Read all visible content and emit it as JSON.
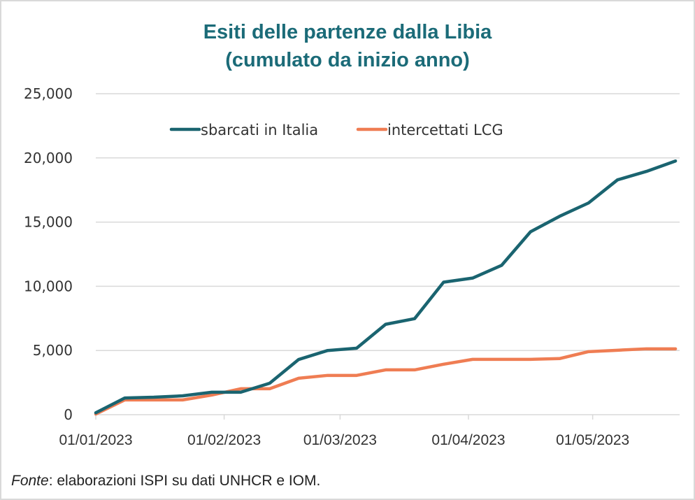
{
  "chart_data": {
    "type": "line",
    "title": "Esiti delle partenze dalla Libia",
    "subtitle": "(cumulato da inizio anno)",
    "xlabel": "",
    "ylabel": "",
    "ylim": [
      0,
      25000
    ],
    "yticks": [
      0,
      5000,
      10000,
      15000,
      20000,
      25000
    ],
    "ytick_labels": [
      "0",
      "5,000",
      "10,000",
      "15,000",
      "20,000",
      "25,000"
    ],
    "xlim_days": [
      0,
      141
    ],
    "xtick_days": [
      0,
      31,
      59,
      90,
      120
    ],
    "xtick_labels": [
      "01/01/2023",
      "01/02/2023",
      "01/03/2023",
      "01/04/2023",
      "01/05/2023"
    ],
    "grid": true,
    "legend_position": "top-center",
    "x": [
      "01/01/2023",
      "08/01/2023",
      "15/01/2023",
      "22/01/2023",
      "29/01/2023",
      "05/02/2023",
      "12/02/2023",
      "19/02/2023",
      "26/02/2023",
      "05/03/2023",
      "12/03/2023",
      "19/03/2023",
      "26/03/2023",
      "02/04/2023",
      "09/04/2023",
      "16/04/2023",
      "23/04/2023",
      "30/04/2023",
      "07/05/2023",
      "14/05/2023",
      "21/05/2023"
    ],
    "x_days": [
      0,
      7,
      14,
      21,
      28,
      35,
      42,
      49,
      56,
      63,
      70,
      77,
      84,
      91,
      98,
      105,
      112,
      119,
      126,
      133,
      140
    ],
    "series": [
      {
        "name": "sbarcati in Italia",
        "color": "#1a6470",
        "values": [
          150,
          1300,
          1360,
          1470,
          1750,
          1750,
          2450,
          4300,
          5000,
          5180,
          7040,
          7480,
          10320,
          10640,
          11630,
          14250,
          15450,
          16490,
          18290,
          18950,
          19760
        ]
      },
      {
        "name": "intercettati LCG",
        "color": "#ef7d53",
        "values": [
          50,
          1150,
          1150,
          1150,
          1530,
          2020,
          2020,
          2840,
          3060,
          3060,
          3490,
          3490,
          3930,
          4310,
          4310,
          4310,
          4370,
          4910,
          5020,
          5130,
          5130
        ]
      }
    ]
  },
  "source": {
    "prefix": "Fonte",
    "text": ": elaborazioni ISPI su dati UNHCR e IOM."
  }
}
